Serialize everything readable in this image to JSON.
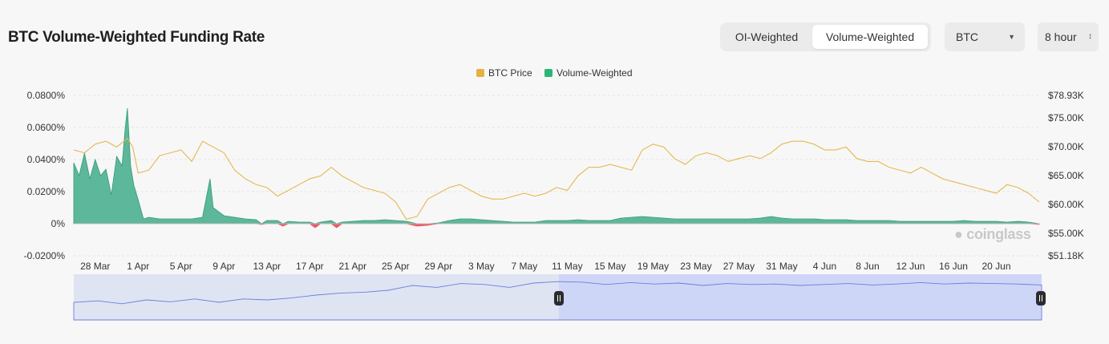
{
  "page": {
    "title": "BTC Volume-Weighted Funding Rate"
  },
  "toolbar": {
    "oi_label": "OI-Weighted",
    "vw_label": "Volume-Weighted",
    "coin_value": "BTC",
    "interval_value": "8 hour"
  },
  "legend": {
    "price_label": "BTC Price",
    "funding_label": "Volume-Weighted"
  },
  "watermark": "coinglass",
  "colors": {
    "price": "#e3b341",
    "funding_pos": "#42ad8b",
    "funding_neg": "#e35d6a",
    "navigator_line": "#6b7fd7",
    "navigator_fill": "#dfe4f3",
    "navigator_selected": "#c9d2f7"
  },
  "chart_data": {
    "type": "area",
    "title": "BTC Volume-Weighted Funding Rate",
    "left_axis": {
      "ticks": [
        "0.0800%",
        "0.0600%",
        "0.0400%",
        "0.0200%",
        "0%",
        "-0.0200%"
      ],
      "min": -0.02,
      "max": 0.08
    },
    "right_axis": {
      "ticks": [
        "$78.93K",
        "$75.00K",
        "$70.00K",
        "$65.00K",
        "$60.00K",
        "$55.00K",
        "$51.18K"
      ],
      "min": 51.18,
      "max": 78.93
    },
    "x_ticks": [
      "28 Mar",
      "1 Apr",
      "5 Apr",
      "9 Apr",
      "13 Apr",
      "17 Apr",
      "21 Apr",
      "25 Apr",
      "29 Apr",
      "3 May",
      "7 May",
      "11 May",
      "15 May",
      "19 May",
      "23 May",
      "27 May",
      "31 May",
      "4 Jun",
      "8 Jun",
      "12 Jun",
      "16 Jun",
      "20 Jun"
    ],
    "x_start": "26 Mar",
    "x_end": "24 Jun",
    "series": [
      {
        "name": "BTC Price",
        "axis": "right",
        "unit": "$K",
        "points": [
          [
            0,
            69.5
          ],
          [
            1,
            69.0
          ],
          [
            2,
            70.5
          ],
          [
            3,
            71.0
          ],
          [
            4,
            70.0
          ],
          [
            5,
            71.5
          ],
          [
            5.5,
            70.0
          ],
          [
            6,
            65.5
          ],
          [
            7,
            66.0
          ],
          [
            8,
            68.5
          ],
          [
            9,
            69.0
          ],
          [
            10,
            69.5
          ],
          [
            11,
            67.5
          ],
          [
            12,
            71.0
          ],
          [
            13,
            70.0
          ],
          [
            14,
            69.0
          ],
          [
            15,
            66.0
          ],
          [
            16,
            64.5
          ],
          [
            17,
            63.5
          ],
          [
            18,
            63.0
          ],
          [
            19,
            61.5
          ],
          [
            20,
            62.5
          ],
          [
            21,
            63.5
          ],
          [
            22,
            64.5
          ],
          [
            23,
            65.0
          ],
          [
            24,
            66.5
          ],
          [
            25,
            65.0
          ],
          [
            26,
            64.0
          ],
          [
            27,
            63.0
          ],
          [
            28,
            62.5
          ],
          [
            29,
            62.0
          ],
          [
            30,
            60.5
          ],
          [
            31,
            57.5
          ],
          [
            32,
            58.0
          ],
          [
            33,
            61.0
          ],
          [
            34,
            62.0
          ],
          [
            35,
            63.0
          ],
          [
            36,
            63.5
          ],
          [
            37,
            62.5
          ],
          [
            38,
            61.5
          ],
          [
            39,
            61.0
          ],
          [
            40,
            61.0
          ],
          [
            41,
            61.5
          ],
          [
            42,
            62.0
          ],
          [
            43,
            61.5
          ],
          [
            44,
            62.0
          ],
          [
            45,
            63.0
          ],
          [
            46,
            62.5
          ],
          [
            47,
            65.0
          ],
          [
            48,
            66.5
          ],
          [
            49,
            66.5
          ],
          [
            50,
            67.0
          ],
          [
            51,
            66.5
          ],
          [
            52,
            66.0
          ],
          [
            53,
            69.5
          ],
          [
            54,
            70.5
          ],
          [
            55,
            70.0
          ],
          [
            56,
            68.0
          ],
          [
            57,
            67.0
          ],
          [
            58,
            68.5
          ],
          [
            59,
            69.0
          ],
          [
            60,
            68.5
          ],
          [
            61,
            67.5
          ],
          [
            62,
            68.0
          ],
          [
            63,
            68.5
          ],
          [
            64,
            68.0
          ],
          [
            65,
            69.0
          ],
          [
            66,
            70.5
          ],
          [
            67,
            71.0
          ],
          [
            68,
            71.0
          ],
          [
            69,
            70.5
          ],
          [
            70,
            69.5
          ],
          [
            71,
            69.5
          ],
          [
            72,
            70.0
          ],
          [
            73,
            68.0
          ],
          [
            74,
            67.5
          ],
          [
            75,
            67.5
          ],
          [
            76,
            66.5
          ],
          [
            77,
            66.0
          ],
          [
            78,
            65.5
          ],
          [
            79,
            66.5
          ],
          [
            80,
            65.5
          ],
          [
            81,
            64.5
          ],
          [
            82,
            64.0
          ],
          [
            83,
            63.5
          ],
          [
            84,
            63.0
          ],
          [
            85,
            62.5
          ],
          [
            86,
            62.0
          ],
          [
            87,
            63.5
          ],
          [
            88,
            63.0
          ],
          [
            89,
            62.0
          ],
          [
            90,
            60.5
          ]
        ]
      },
      {
        "name": "Volume-Weighted",
        "axis": "left",
        "unit": "%",
        "points": [
          [
            0,
            0.038
          ],
          [
            0.5,
            0.03
          ],
          [
            1,
            0.044
          ],
          [
            1.5,
            0.028
          ],
          [
            2,
            0.04
          ],
          [
            2.5,
            0.03
          ],
          [
            3,
            0.034
          ],
          [
            3.5,
            0.018
          ],
          [
            4,
            0.042
          ],
          [
            4.5,
            0.036
          ],
          [
            4.8,
            0.06
          ],
          [
            5,
            0.072
          ],
          [
            5.3,
            0.036
          ],
          [
            5.6,
            0.024
          ],
          [
            6,
            0.015
          ],
          [
            6.5,
            0.003
          ],
          [
            7,
            0.004
          ],
          [
            8,
            0.003
          ],
          [
            9,
            0.003
          ],
          [
            10,
            0.003
          ],
          [
            11,
            0.003
          ],
          [
            12,
            0.004
          ],
          [
            12.7,
            0.028
          ],
          [
            13,
            0.01
          ],
          [
            14,
            0.005
          ],
          [
            15,
            0.004
          ],
          [
            16,
            0.003
          ],
          [
            17,
            0.0025
          ],
          [
            17.5,
            -0.0005
          ],
          [
            18,
            0.002
          ],
          [
            19,
            0.002
          ],
          [
            19.5,
            -0.0015
          ],
          [
            20,
            0.0015
          ],
          [
            21,
            0.001
          ],
          [
            22,
            0.001
          ],
          [
            22.5,
            -0.0025
          ],
          [
            23,
            0.001
          ],
          [
            24,
            0.002
          ],
          [
            24.5,
            -0.0025
          ],
          [
            25,
            0.001
          ],
          [
            26,
            0.0015
          ],
          [
            27,
            0.002
          ],
          [
            28,
            0.002
          ],
          [
            29,
            0.0025
          ],
          [
            30,
            0.002
          ],
          [
            31,
            0.0015
          ],
          [
            32,
            -0.0015
          ],
          [
            33,
            -0.001
          ],
          [
            34,
            0.0005
          ],
          [
            35,
            0.002
          ],
          [
            36,
            0.003
          ],
          [
            37,
            0.003
          ],
          [
            38,
            0.0025
          ],
          [
            39,
            0.002
          ],
          [
            40,
            0.0015
          ],
          [
            41,
            0.001
          ],
          [
            42,
            0.001
          ],
          [
            43,
            0.001
          ],
          [
            44,
            0.002
          ],
          [
            45,
            0.002
          ],
          [
            46,
            0.002
          ],
          [
            47,
            0.0025
          ],
          [
            48,
            0.002
          ],
          [
            49,
            0.002
          ],
          [
            50,
            0.002
          ],
          [
            51,
            0.0035
          ],
          [
            52,
            0.004
          ],
          [
            53,
            0.0045
          ],
          [
            54,
            0.004
          ],
          [
            55,
            0.0035
          ],
          [
            56,
            0.003
          ],
          [
            57,
            0.003
          ],
          [
            58,
            0.003
          ],
          [
            59,
            0.003
          ],
          [
            60,
            0.003
          ],
          [
            61,
            0.003
          ],
          [
            62,
            0.003
          ],
          [
            63,
            0.003
          ],
          [
            64,
            0.0035
          ],
          [
            65,
            0.0045
          ],
          [
            66,
            0.0035
          ],
          [
            67,
            0.003
          ],
          [
            68,
            0.003
          ],
          [
            69,
            0.003
          ],
          [
            70,
            0.0025
          ],
          [
            71,
            0.0025
          ],
          [
            72,
            0.0025
          ],
          [
            73,
            0.002
          ],
          [
            74,
            0.002
          ],
          [
            75,
            0.002
          ],
          [
            76,
            0.002
          ],
          [
            77,
            0.0015
          ],
          [
            78,
            0.0015
          ],
          [
            79,
            0.0015
          ],
          [
            80,
            0.0015
          ],
          [
            81,
            0.0015
          ],
          [
            82,
            0.0015
          ],
          [
            83,
            0.002
          ],
          [
            84,
            0.0015
          ],
          [
            85,
            0.0015
          ],
          [
            86,
            0.0015
          ],
          [
            87,
            0.001
          ],
          [
            88,
            0.0015
          ],
          [
            89,
            0.001
          ],
          [
            90,
            -0.0005
          ]
        ]
      }
    ],
    "navigator": {
      "selected_range": [
        "11 May",
        "24 Jun"
      ],
      "points": [
        [
          0,
          0.45
        ],
        [
          4,
          0.42
        ],
        [
          8,
          0.48
        ],
        [
          12,
          0.4
        ],
        [
          16,
          0.44
        ],
        [
          20,
          0.38
        ],
        [
          24,
          0.45
        ],
        [
          28,
          0.38
        ],
        [
          32,
          0.4
        ],
        [
          36,
          0.36
        ],
        [
          40,
          0.3
        ],
        [
          44,
          0.26
        ],
        [
          48,
          0.24
        ],
        [
          52,
          0.2
        ],
        [
          56,
          0.1
        ],
        [
          60,
          0.14
        ],
        [
          64,
          0.06
        ],
        [
          68,
          0.08
        ],
        [
          72,
          0.14
        ],
        [
          76,
          0.05
        ],
        [
          80,
          0.02
        ],
        [
          84,
          0.03
        ],
        [
          88,
          0.08
        ],
        [
          92,
          0.04
        ],
        [
          96,
          0.07
        ],
        [
          100,
          0.05
        ],
        [
          104,
          0.1
        ],
        [
          108,
          0.06
        ],
        [
          112,
          0.08
        ],
        [
          116,
          0.07
        ],
        [
          120,
          0.1
        ],
        [
          124,
          0.08
        ],
        [
          128,
          0.06
        ],
        [
          132,
          0.09
        ],
        [
          136,
          0.07
        ],
        [
          140,
          0.04
        ],
        [
          144,
          0.07
        ],
        [
          148,
          0.05
        ],
        [
          152,
          0.06
        ],
        [
          156,
          0.07
        ],
        [
          160,
          0.09
        ]
      ]
    }
  }
}
